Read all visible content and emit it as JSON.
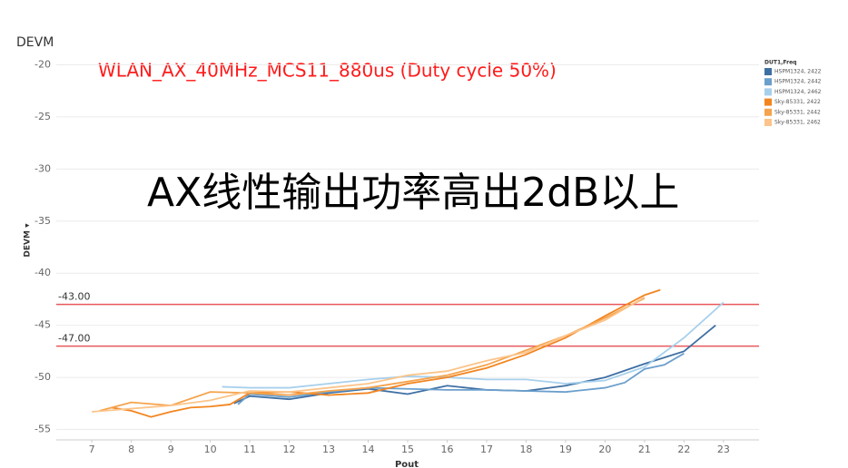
{
  "chart_data": {
    "type": "line",
    "header": "DEVM",
    "annotation": "WLAN_AX_40MHz_MCS11_880us (Duty cycle 50%)",
    "big_annotation": "AX线性输出功率高出2dB以上",
    "x_label": "Pout",
    "y_label": "DEVM ▾",
    "legend_title": "DUT1,Freq",
    "xlim": [
      6.1,
      23.9
    ],
    "ylim": [
      -56,
      -19
    ],
    "xticks": [
      7,
      8,
      9,
      10,
      11,
      12,
      13,
      14,
      15,
      16,
      17,
      18,
      19,
      20,
      21,
      22,
      23
    ],
    "yticks": [
      -20,
      -25,
      -30,
      -35,
      -40,
      -45,
      -50,
      -55
    ],
    "grid": true,
    "reference_lines": [
      {
        "value": -43,
        "label": "-43.00"
      },
      {
        "value": -47,
        "label": "-47.00"
      }
    ],
    "reference_color": "#e8585c",
    "series": [
      {
        "name": "HSPM1324, 2422",
        "color": "#3e6fa3",
        "x": [
          10.6,
          11,
          12,
          13,
          14,
          15,
          16,
          17,
          18,
          19,
          20,
          21,
          22,
          22.8
        ],
        "values": [
          -52.5,
          -51.8,
          -52.1,
          -51.5,
          -51.1,
          -51.6,
          -50.8,
          -51.2,
          -51.3,
          -50.8,
          -50.0,
          -48.7,
          -47.5,
          -45.0
        ]
      },
      {
        "name": "HSPM1324, 2442",
        "color": "#6b9fcc",
        "x": [
          10.7,
          11,
          12,
          13,
          14,
          15,
          16,
          17,
          18,
          19,
          20,
          20.5,
          21,
          21.5,
          22
        ],
        "values": [
          -52.6,
          -51.6,
          -51.9,
          -51.4,
          -51.0,
          -51.1,
          -51.2,
          -51.2,
          -51.3,
          -51.4,
          -51.0,
          -50.5,
          -49.2,
          -48.8,
          -47.7
        ]
      },
      {
        "name": "HSPM1324, 2462",
        "color": "#a7d0ec",
        "x": [
          10.3,
          11,
          12,
          13,
          14,
          15,
          16,
          17,
          18,
          19,
          20,
          21,
          22,
          23
        ],
        "values": [
          -50.9,
          -51.0,
          -51.0,
          -50.6,
          -50.2,
          -49.9,
          -50.0,
          -50.2,
          -50.2,
          -50.6,
          -50.3,
          -49.0,
          -46.2,
          -42.8
        ]
      },
      {
        "name": "Sky-85331, 2422",
        "color": "#f28520",
        "x": [
          7.5,
          8,
          8.5,
          9,
          9.5,
          10,
          10.5,
          11,
          12,
          13,
          14,
          15,
          16,
          17,
          18,
          19,
          20,
          21,
          21.4
        ],
        "values": [
          -52.9,
          -53.2,
          -53.8,
          -53.3,
          -52.9,
          -52.8,
          -52.6,
          -51.5,
          -51.4,
          -51.7,
          -51.5,
          -50.6,
          -50.0,
          -49.1,
          -47.8,
          -46.2,
          -44.1,
          -42.1,
          -41.6
        ]
      },
      {
        "name": "Sky-85331, 2442",
        "color": "#f5a34c",
        "x": [
          7.2,
          8,
          9,
          10,
          11,
          12,
          13,
          14,
          15,
          16,
          17,
          18,
          19,
          20,
          21
        ],
        "values": [
          -53.2,
          -52.4,
          -52.7,
          -51.4,
          -51.5,
          -51.7,
          -51.3,
          -51.0,
          -50.4,
          -49.8,
          -48.8,
          -47.4,
          -46.0,
          -44.3,
          -42.4
        ]
      },
      {
        "name": "Sky-85331, 2462",
        "color": "#fbc48a",
        "x": [
          7,
          8,
          9,
          10,
          11,
          12,
          13,
          14,
          15,
          16,
          17,
          18,
          19,
          20,
          21
        ],
        "values": [
          -53.3,
          -53.0,
          -52.7,
          -52.2,
          -51.3,
          -51.4,
          -51.0,
          -50.6,
          -49.8,
          -49.4,
          -48.4,
          -47.6,
          -46.0,
          -44.5,
          -42.3
        ]
      }
    ]
  }
}
